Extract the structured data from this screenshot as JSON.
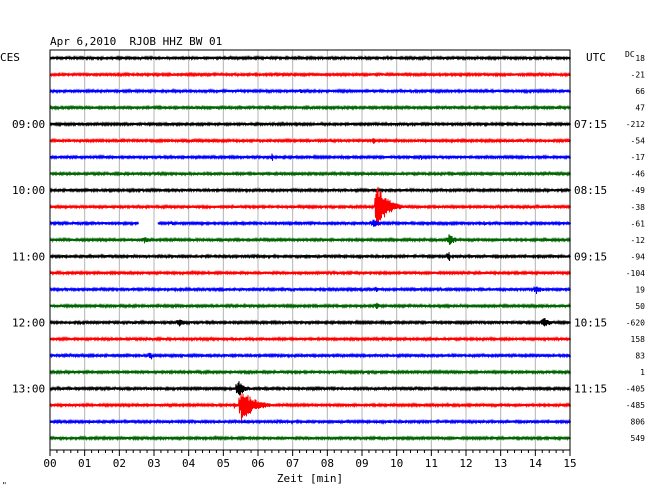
{
  "header": {
    "title": "Apr 6,2010  RJOB HHZ BW 01",
    "left_zone": "CES",
    "right_zone": "UTC",
    "dc_label": "DC"
  },
  "footer": {
    "xlabel": "Zeit [min]",
    "corner_mark": "\""
  },
  "chart_data": {
    "type": "line",
    "title": "Apr 6,2010  RJOB HHZ BW 01",
    "xlabel": "Zeit [min]",
    "xlim": [
      0,
      15
    ],
    "x_ticks": [
      "00",
      "01",
      "02",
      "03",
      "04",
      "05",
      "06",
      "07",
      "08",
      "09",
      "10",
      "11",
      "12",
      "13",
      "14",
      "15"
    ],
    "grid": true,
    "trace_colors": [
      "#000000",
      "#ff0000",
      "#0000ff",
      "#006400"
    ],
    "left_time_labels": [
      {
        "trace": 4,
        "text": "09:00"
      },
      {
        "trace": 8,
        "text": "10:00"
      },
      {
        "trace": 12,
        "text": "11:00"
      },
      {
        "trace": 16,
        "text": "12:00"
      },
      {
        "trace": 20,
        "text": "13:00"
      }
    ],
    "right_time_labels": [
      {
        "trace": 4,
        "text": "07:15"
      },
      {
        "trace": 8,
        "text": "08:15"
      },
      {
        "trace": 12,
        "text": "09:15"
      },
      {
        "trace": 16,
        "text": "10:15"
      },
      {
        "trace": 20,
        "text": "11:15"
      }
    ],
    "dc_offsets": [
      "18",
      "-21",
      "66",
      "47",
      "-212",
      "-54",
      "-17",
      "-46",
      "-49",
      "-38",
      "-61",
      "-12",
      "-94",
      "-104",
      "19",
      "50",
      "-620",
      "158",
      "83",
      "1",
      "-405",
      "-485",
      "806",
      "549"
    ],
    "events": [
      {
        "trace": 0,
        "minute": 13.4,
        "amp": 3,
        "dur": 0.05
      },
      {
        "trace": 2,
        "minute": 7.2,
        "amp": 3,
        "dur": 0.4
      },
      {
        "trace": 2,
        "minute": 1.8,
        "amp": 2,
        "dur": 0.2
      },
      {
        "trace": 5,
        "minute": 9.3,
        "amp": 4,
        "dur": 0.4
      },
      {
        "trace": 5,
        "minute": 8.1,
        "amp": 3,
        "dur": 0.2
      },
      {
        "trace": 6,
        "minute": 6.4,
        "amp": 4,
        "dur": 0.15
      },
      {
        "trace": 6,
        "minute": 10.7,
        "amp": 3,
        "dur": 0.2
      },
      {
        "trace": 9,
        "minute": 9.4,
        "amp": 26,
        "dur": 0.9
      },
      {
        "trace": 10,
        "minute": 9.3,
        "amp": 5,
        "dur": 0.6
      },
      {
        "trace": 10,
        "minute": 3.5,
        "amp": 3,
        "dur": 0.4
      },
      {
        "trace": 10,
        "minute": 12.5,
        "amp": 3,
        "dur": 0.3
      },
      {
        "trace": 11,
        "minute": 2.7,
        "amp": 4,
        "dur": 0.6
      },
      {
        "trace": 11,
        "minute": 11.5,
        "amp": 6,
        "dur": 0.6
      },
      {
        "trace": 12,
        "minute": 11.5,
        "amp": 8,
        "dur": 0.1
      },
      {
        "trace": 14,
        "minute": 14.0,
        "amp": 6,
        "dur": 0.5
      },
      {
        "trace": 14,
        "minute": 9.4,
        "amp": 3,
        "dur": 0.3
      },
      {
        "trace": 15,
        "minute": 9.4,
        "amp": 4,
        "dur": 0.4
      },
      {
        "trace": 16,
        "minute": 3.7,
        "amp": 5,
        "dur": 0.5
      },
      {
        "trace": 16,
        "minute": 14.2,
        "amp": 6,
        "dur": 0.7
      },
      {
        "trace": 16,
        "minute": 2.4,
        "amp": 3,
        "dur": 0.1
      },
      {
        "trace": 18,
        "minute": 2.9,
        "amp": 6,
        "dur": 0.1
      },
      {
        "trace": 20,
        "minute": 5.4,
        "amp": 10,
        "dur": 0.6
      },
      {
        "trace": 21,
        "minute": 5.5,
        "amp": 18,
        "dur": 1.1
      },
      {
        "trace": 21,
        "minute": 5.3,
        "amp": 4,
        "dur": 0.2
      },
      {
        "trace": 22,
        "minute": 5.6,
        "amp": 3,
        "dur": 0.4
      },
      {
        "trace": 22,
        "minute": 13.8,
        "amp": 3,
        "dur": 0.2
      }
    ],
    "gaps": [
      {
        "trace": 10,
        "from": 2.55,
        "to": 3.1
      }
    ]
  }
}
